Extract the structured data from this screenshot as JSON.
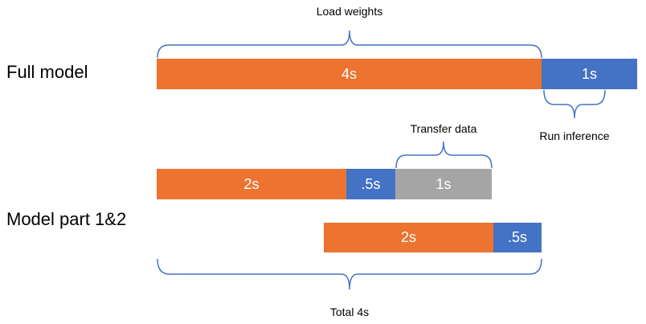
{
  "labels": {
    "full_model": "Full model",
    "model_parts": "Model part 1&2",
    "load_weights": "Load weights",
    "run_inference": "Run inference",
    "transfer_data": "Transfer data",
    "total": "Total 4s"
  },
  "bars": {
    "full_load": "4s",
    "full_infer": "1s",
    "part1_load": "2s",
    "part1_infer": ".5s",
    "part1_transfer": "1s",
    "part2_load": "2s",
    "part2_infer": ".5s"
  },
  "colors": {
    "load": "#ED7331",
    "inference": "#4472C4",
    "transfer": "#A5A5A5",
    "brace": "#4472C4"
  }
}
